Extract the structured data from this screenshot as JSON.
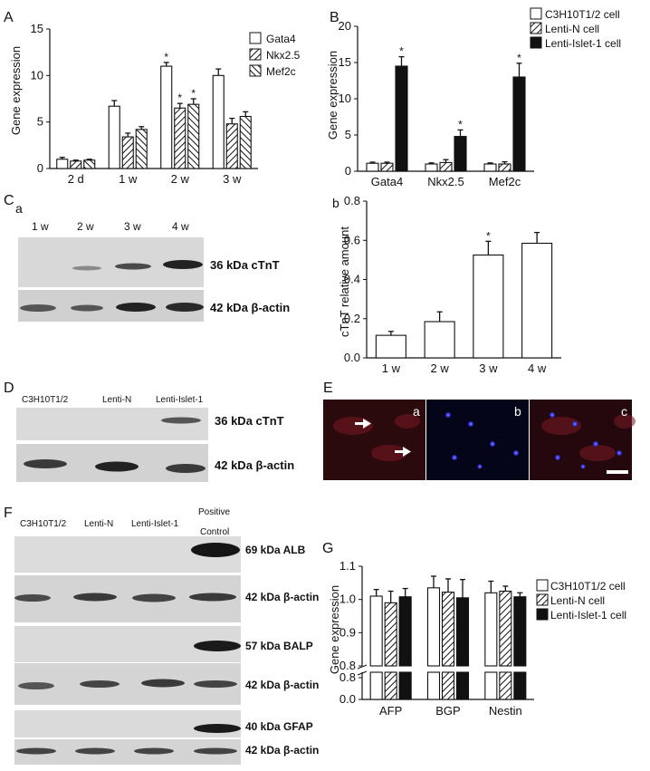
{
  "panel_letters": {
    "A": "A",
    "B": "B",
    "C": "C",
    "Ca": "a",
    "Cb": "b",
    "D": "D",
    "E": "E",
    "F": "F",
    "G": "G"
  },
  "colors": {
    "white": "#ffffff",
    "black": "#111111",
    "blot_bg": "#d6d6d6",
    "fluor_bg": "#1a0608"
  },
  "chart_data": [
    {
      "id": "A",
      "type": "bar",
      "categories": [
        "2 d",
        "1 w",
        "2 w",
        "3 w"
      ],
      "series": [
        {
          "name": "Gata4",
          "pattern": "white",
          "values": [
            1.0,
            6.7,
            11.0,
            10.0
          ],
          "errors": [
            0.2,
            0.6,
            0.4,
            0.7
          ]
        },
        {
          "name": "Nkx2.5",
          "pattern": "hatch",
          "values": [
            0.8,
            3.4,
            6.5,
            4.8
          ],
          "errors": [
            0.1,
            0.4,
            0.5,
            0.6
          ]
        },
        {
          "name": "Mef2c",
          "pattern": "crosshatch",
          "values": [
            0.9,
            4.2,
            6.9,
            5.6
          ],
          "errors": [
            0.1,
            0.3,
            0.6,
            0.5
          ]
        }
      ],
      "stars": [
        [
          2,
          0
        ],
        [
          2,
          1
        ],
        [
          2,
          2
        ]
      ],
      "ylabel": "Gene expression",
      "ylim": [
        0,
        15
      ],
      "yticks": [
        0,
        5,
        10,
        15
      ],
      "legend": "top-right"
    },
    {
      "id": "B",
      "type": "bar",
      "categories": [
        "Gata4",
        "Nkx2.5",
        "Mef2c"
      ],
      "series": [
        {
          "name": "C3H10T1/2 cell",
          "pattern": "white",
          "values": [
            1.1,
            1.0,
            1.0
          ],
          "errors": [
            0.15,
            0.15,
            0.15
          ]
        },
        {
          "name": "Lenti-N cell",
          "pattern": "hatch",
          "values": [
            1.1,
            1.2,
            1.0
          ],
          "errors": [
            0.15,
            0.4,
            0.3
          ]
        },
        {
          "name": "Lenti-Islet-1 cell",
          "pattern": "black",
          "values": [
            14.5,
            4.8,
            13.0
          ],
          "errors": [
            1.3,
            0.9,
            1.9
          ]
        }
      ],
      "stars": [
        [
          0,
          2
        ],
        [
          1,
          2
        ],
        [
          2,
          2
        ]
      ],
      "ylabel": "Gene expression",
      "ylim": [
        0,
        20
      ],
      "yticks": [
        0,
        5,
        10,
        15,
        20
      ],
      "legend": "top-right"
    },
    {
      "id": "Cb",
      "type": "bar",
      "categories": [
        "1 w",
        "2 w",
        "3 w",
        "4 w"
      ],
      "series": [
        {
          "pattern": "white",
          "values": [
            0.115,
            0.185,
            0.525,
            0.585
          ],
          "errors": [
            0.02,
            0.05,
            0.07,
            0.055
          ]
        }
      ],
      "stars": [
        [
          2,
          0
        ]
      ],
      "ylabel": "cTnT relative amount",
      "ylim": [
        0,
        0.8
      ],
      "yticks": [
        "0.0",
        "0.2",
        "0.4",
        "0.6",
        "0.8"
      ]
    },
    {
      "id": "G",
      "type": "bar",
      "categories": [
        "AFP",
        "BGP",
        "Nestin"
      ],
      "series": [
        {
          "name": "C3H10T1/2 cell",
          "pattern": "white",
          "values": [
            1.01,
            1.035,
            1.02
          ],
          "errors": [
            0.02,
            0.035,
            0.035
          ]
        },
        {
          "name": "Lenti-N cell",
          "pattern": "hatch",
          "values": [
            0.99,
            1.022,
            1.025
          ],
          "errors": [
            0.035,
            0.04,
            0.015
          ]
        },
        {
          "name": "Lenti-Islet-1 cell",
          "pattern": "black",
          "values": [
            1.008,
            1.005,
            1.008
          ],
          "errors": [
            0.025,
            0.055,
            0.012
          ]
        }
      ],
      "ylabel": "Gene expression",
      "ylim": [
        0,
        1.1
      ],
      "yticks_upper": [
        "0.8",
        "0.9",
        "1.0",
        "1.1"
      ],
      "yticks_lower": [
        "0.0",
        "0.8"
      ],
      "broken_axis": true,
      "legend": "top-right"
    }
  ],
  "blot_C": {
    "lanes": [
      "1 w",
      "2 w",
      "3 w",
      "4 w"
    ],
    "bands": [
      "36 kDa cTnT",
      "42 kDa β-actin"
    ]
  },
  "blot_D": {
    "lanes": [
      "C3H10T1/2",
      "Lenti-N",
      "Lenti-Islet-1"
    ],
    "bands": [
      "36 kDa cTnT",
      "42 kDa β-actin"
    ]
  },
  "blot_F": {
    "lanes": [
      "C3H10T1/2",
      "Lenti-N",
      "Lenti-Islet-1",
      "Positive",
      "Control"
    ],
    "bands": [
      "69 kDa ALB",
      "42 kDa β-actin",
      "57 kDa BALP",
      "42 kDa β-actin",
      "40 kDa GFAP",
      "42 kDa β-actin"
    ]
  },
  "fluor_E": {
    "sublabels": [
      "a",
      "b",
      "c"
    ]
  }
}
